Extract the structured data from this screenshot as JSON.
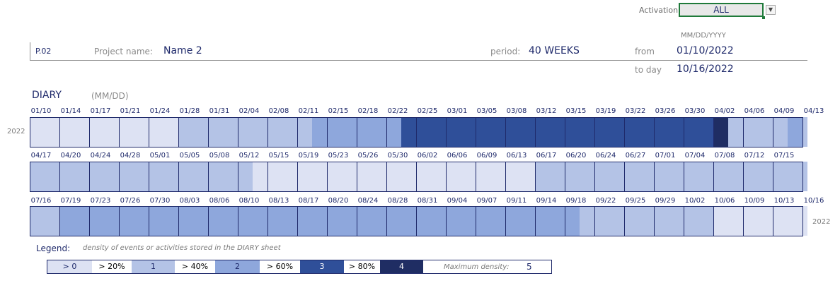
{
  "activation": {
    "label": "Activation:",
    "value": "ALL",
    "dropdown_icon": "chevron-down-icon"
  },
  "project": {
    "id": "P.02",
    "name_label": "Project name:",
    "name": "Name 2",
    "period_label": "period:",
    "period": "40 WEEKS",
    "date_format": "MM/DD/YYYY",
    "from_label": "from",
    "from": "01/10/2022",
    "today_label": "to day",
    "today": "10/16/2022"
  },
  "diary": {
    "title": "DIARY",
    "format": "(MM/DD)",
    "year_start": "2022",
    "year_end": "2022",
    "rows": [
      {
        "dates": [
          "01/10",
          "01/14",
          "01/17",
          "01/21",
          "01/24",
          "01/28",
          "01/31",
          "02/04",
          "02/08",
          "02/11",
          "02/15",
          "02/18",
          "02/22",
          "02/25",
          "03/01",
          "03/05",
          "03/08",
          "03/12",
          "03/15",
          "03/19",
          "03/22",
          "03/26",
          "03/30",
          "04/02",
          "04/06",
          "04/09",
          "04/13"
        ],
        "density": [
          1,
          1,
          1,
          1,
          1,
          1,
          1,
          1,
          1,
          1,
          2,
          2,
          2,
          2,
          2,
          2,
          2,
          2,
          2,
          3,
          3,
          3,
          3,
          3,
          3,
          4,
          4,
          4,
          4,
          4,
          4,
          4,
          4,
          4,
          4,
          4,
          4,
          4,
          4,
          4,
          4,
          4,
          4,
          4,
          4,
          4,
          5,
          2,
          2,
          2,
          2,
          3,
          2,
          2,
          2,
          2,
          2
        ]
      },
      {
        "dates": [
          "04/17",
          "04/20",
          "04/24",
          "04/28",
          "05/01",
          "05/05",
          "05/08",
          "05/12",
          "05/15",
          "05/19",
          "05/23",
          "05/26",
          "05/30",
          "06/02",
          "06/06",
          "06/09",
          "06/13",
          "06/17",
          "06/20",
          "06/24",
          "06/27",
          "07/01",
          "07/04",
          "07/08",
          "07/12",
          "07/15"
        ],
        "density": [
          2,
          2,
          2,
          2,
          2,
          2,
          2,
          2,
          2,
          2,
          2,
          2,
          2,
          2,
          2,
          1,
          1,
          1,
          1,
          1,
          1,
          1,
          1,
          1,
          1,
          1,
          1,
          1,
          1,
          1,
          1,
          1,
          1,
          1,
          2,
          2,
          2,
          2,
          2,
          2,
          2,
          2,
          2,
          2,
          2,
          2,
          2,
          2,
          2,
          2,
          2,
          2,
          2,
          2,
          2,
          2,
          2
        ]
      },
      {
        "dates": [
          "07/16",
          "07/19",
          "07/23",
          "07/26",
          "07/30",
          "08/03",
          "08/06",
          "08/10",
          "08/13",
          "08/17",
          "08/20",
          "08/24",
          "08/28",
          "08/31",
          "09/04",
          "09/07",
          "09/11",
          "09/14",
          "09/18",
          "09/22",
          "09/25",
          "09/29",
          "10/02",
          "10/06",
          "10/09",
          "10/13",
          "10/16"
        ],
        "density": [
          2,
          2,
          3,
          3,
          3,
          3,
          3,
          3,
          3,
          3,
          3,
          3,
          3,
          3,
          3,
          3,
          3,
          3,
          3,
          3,
          3,
          3,
          3,
          3,
          3,
          3,
          3,
          3,
          3,
          3,
          3,
          3,
          3,
          3,
          3,
          3,
          3,
          2,
          2,
          2,
          2,
          2,
          2,
          2,
          2,
          2,
          1,
          1,
          1,
          1,
          1,
          1,
          1,
          1,
          1,
          3,
          0
        ]
      }
    ]
  },
  "colors": {
    "density": [
      "#ffffff",
      "#dde2f3",
      "#b4c3e6",
      "#8ea7dc",
      "#2f4f99",
      "#1f2d63"
    ],
    "border": "#1f2a6b"
  },
  "legend": {
    "label": "Legend:",
    "description": "density of events or activities stored in the DIARY sheet",
    "items": [
      {
        "text": "> 0",
        "kind": "swatch",
        "level": 1
      },
      {
        "text": "> 20%",
        "kind": "sep"
      },
      {
        "text": "1",
        "kind": "swatch",
        "level": 2
      },
      {
        "text": "> 40%",
        "kind": "sep"
      },
      {
        "text": "2",
        "kind": "swatch",
        "level": 3
      },
      {
        "text": "> 60%",
        "kind": "sep"
      },
      {
        "text": "3",
        "kind": "swatch",
        "level": 4
      },
      {
        "text": "> 80%",
        "kind": "sep"
      },
      {
        "text": "4",
        "kind": "swatch",
        "level": 5
      }
    ],
    "max_label": "Maximum density:",
    "max_value": "5"
  }
}
